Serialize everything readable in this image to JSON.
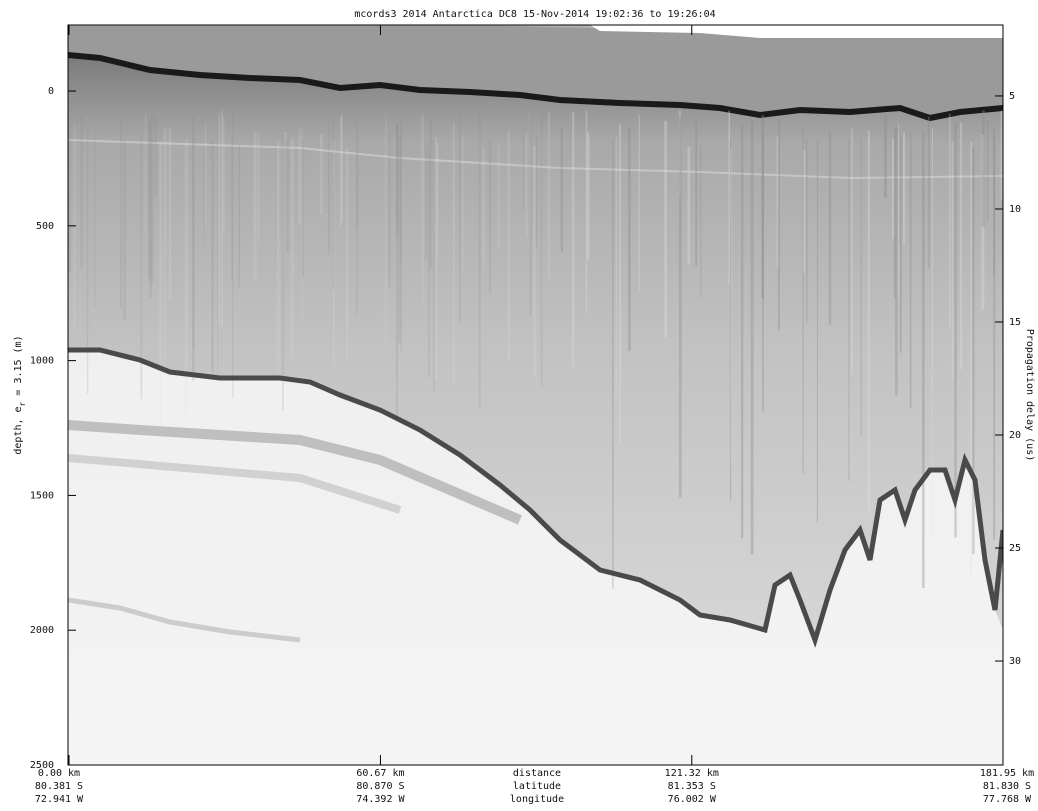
{
  "chart_data": {
    "type": "radargram",
    "title": "mcords3 2014 Antarctica DC8 15-Nov-2014 19:02:36 to 19:26:04",
    "ylabel": {
      "text": "depth, e",
      "sub": "r",
      "tail": " = 3.15 (m)"
    },
    "y2label": "Propagation delay (us)",
    "ylim": [
      -245,
      2500
    ],
    "yinvert": true,
    "yticks": [
      0,
      500,
      1000,
      1500,
      2000,
      2500
    ],
    "y2lim": [
      1.86,
      34.6
    ],
    "y2ticks": [
      5,
      10,
      15,
      20,
      25,
      30
    ],
    "xlim": [
      0,
      181.95
    ],
    "xticks": [
      {
        "value": 0,
        "label": "0.00 km"
      },
      {
        "value": 60.67,
        "label": "60.67 km"
      },
      {
        "value": 121.32,
        "label": "121.32 km"
      },
      {
        "value": 181.95,
        "label": "181.95 km"
      }
    ],
    "latitude_labels": [
      "80.381 S",
      "80.870 S",
      "81.353 S",
      "81.830 S"
    ],
    "longitude_labels": [
      "72.941 W",
      "74.392 W",
      "76.002 W",
      "77.768 W"
    ],
    "x_row_labels": [
      "distance",
      "latitude",
      "longitude"
    ]
  }
}
